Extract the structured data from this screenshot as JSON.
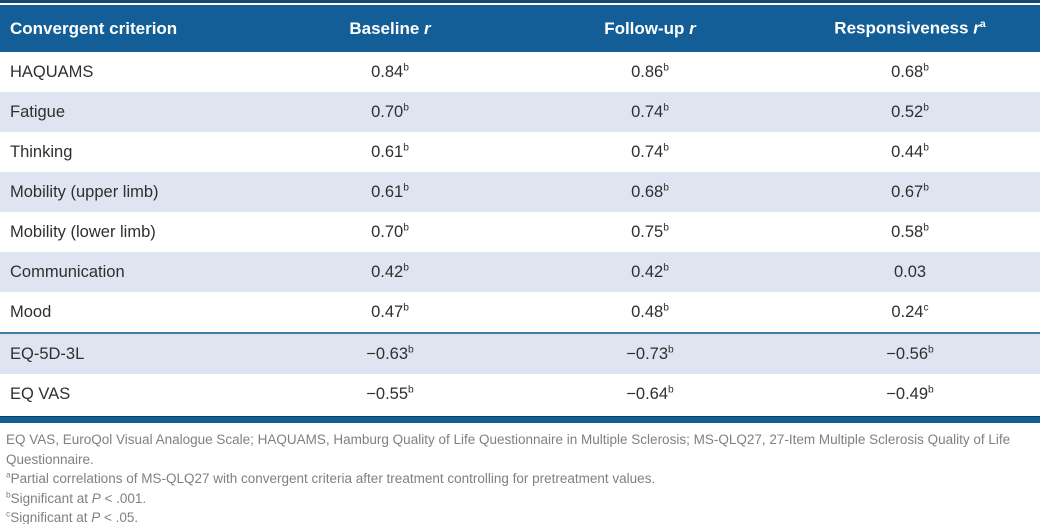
{
  "colors": {
    "header_bg": "#135e96",
    "top_rule": "#16486f",
    "row_alt_bg": "#dee4f0",
    "separator_line": "#3f7ea6",
    "bottom_bar": "#135e96",
    "body_text": "#2f2f2f",
    "footnote_text": "#808080",
    "header_text": "#ffffff"
  },
  "table": {
    "header": {
      "criterion_label": "Convergent criterion",
      "columns": [
        {
          "text": "Baseline ",
          "italic": "r",
          "sup": ""
        },
        {
          "text": "Follow-up ",
          "italic": "r",
          "sup": ""
        },
        {
          "text": "Responsiveness ",
          "italic": "r",
          "sup": "a"
        }
      ]
    },
    "rows": [
      {
        "criterion": "HAQUAMS",
        "shaded": false,
        "separator_above": false,
        "values": [
          {
            "v": "0.84",
            "sup": "b"
          },
          {
            "v": "0.86",
            "sup": "b"
          },
          {
            "v": "0.68",
            "sup": "b"
          }
        ]
      },
      {
        "criterion": "Fatigue",
        "shaded": true,
        "separator_above": false,
        "values": [
          {
            "v": "0.70",
            "sup": "b"
          },
          {
            "v": "0.74",
            "sup": "b"
          },
          {
            "v": "0.52",
            "sup": "b"
          }
        ]
      },
      {
        "criterion": "Thinking",
        "shaded": false,
        "separator_above": false,
        "values": [
          {
            "v": "0.61",
            "sup": "b"
          },
          {
            "v": "0.74",
            "sup": "b"
          },
          {
            "v": "0.44",
            "sup": "b"
          }
        ]
      },
      {
        "criterion": "Mobility (upper limb)",
        "shaded": true,
        "separator_above": false,
        "values": [
          {
            "v": "0.61",
            "sup": "b"
          },
          {
            "v": "0.68",
            "sup": "b"
          },
          {
            "v": "0.67",
            "sup": "b"
          }
        ]
      },
      {
        "criterion": "Mobility (lower limb)",
        "shaded": false,
        "separator_above": false,
        "values": [
          {
            "v": "0.70",
            "sup": "b"
          },
          {
            "v": "0.75",
            "sup": "b"
          },
          {
            "v": "0.58",
            "sup": "b"
          }
        ]
      },
      {
        "criterion": "Communication",
        "shaded": true,
        "separator_above": false,
        "values": [
          {
            "v": "0.42",
            "sup": "b"
          },
          {
            "v": "0.42",
            "sup": "b"
          },
          {
            "v": "0.03",
            "sup": ""
          }
        ]
      },
      {
        "criterion": "Mood",
        "shaded": false,
        "separator_above": false,
        "values": [
          {
            "v": "0.47",
            "sup": "b"
          },
          {
            "v": "0.48",
            "sup": "b"
          },
          {
            "v": "0.24",
            "sup": "c"
          }
        ]
      },
      {
        "criterion": "EQ-5D-3L",
        "shaded": true,
        "separator_above": true,
        "values": [
          {
            "v": "−0.63",
            "sup": "b"
          },
          {
            "v": "−0.73",
            "sup": "b"
          },
          {
            "v": "−0.56",
            "sup": "b"
          }
        ]
      },
      {
        "criterion": "EQ VAS",
        "shaded": false,
        "separator_above": false,
        "values": [
          {
            "v": "−0.55",
            "sup": "b"
          },
          {
            "v": "−0.64",
            "sup": "b"
          },
          {
            "v": "−0.49",
            "sup": "b"
          }
        ]
      }
    ]
  },
  "footnotes": [
    {
      "sup": "",
      "segments": [
        {
          "t": "EQ VAS, EuroQol Visual Analogue Scale; HAQUAMS, Hamburg Quality of Life Questionnaire in Multiple Sclerosis; MS-QLQ27, 27-Item Multiple Sclerosis Quality of Life Questionnaire."
        }
      ]
    },
    {
      "sup": "a",
      "segments": [
        {
          "t": "Partial correlations of MS-QLQ27 with convergent criteria after treatment controlling for pretreatment values."
        }
      ]
    },
    {
      "sup": "b",
      "segments": [
        {
          "t": "Significant at "
        },
        {
          "t": "P",
          "italic": true
        },
        {
          "t": " < .001."
        }
      ]
    },
    {
      "sup": "c",
      "segments": [
        {
          "t": "Significant at "
        },
        {
          "t": "P",
          "italic": true
        },
        {
          "t": " < .05."
        }
      ]
    }
  ]
}
